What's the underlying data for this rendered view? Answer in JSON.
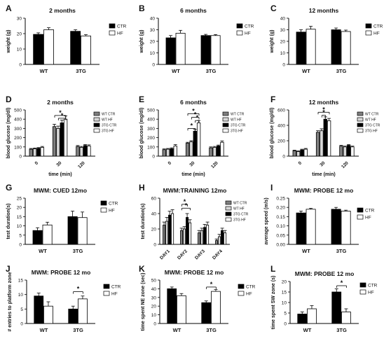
{
  "chart_data": [
    {
      "panel": "A",
      "title": "2 months",
      "type": "bar",
      "ylabel": "weight (g)",
      "ylim": [
        0,
        30
      ],
      "yticks": [
        0,
        10,
        20,
        30
      ],
      "categories": [
        "WT",
        "3TG"
      ],
      "series": [
        {
          "name": "CTR",
          "values": [
            19.5,
            21.5
          ],
          "errors": [
            1.0,
            1.0
          ],
          "fill": "#000000"
        },
        {
          "name": "HF",
          "values": [
            22.5,
            18.5
          ],
          "errors": [
            1.3,
            0.8
          ],
          "fill": "#ffffff"
        }
      ],
      "legend": "right"
    },
    {
      "panel": "B",
      "title": "6 months",
      "type": "bar",
      "ylabel": "weight (g)",
      "ylim": [
        0,
        40
      ],
      "yticks": [
        0,
        10,
        20,
        30,
        40
      ],
      "categories": [
        "WT",
        "3TG"
      ],
      "series": [
        {
          "name": "CTR",
          "values": [
            23,
            25
          ],
          "errors": [
            2.0,
            1.0
          ],
          "fill": "#000000"
        },
        {
          "name": "HF",
          "values": [
            27,
            25
          ],
          "errors": [
            2.5,
            0.8
          ],
          "fill": "#ffffff"
        }
      ],
      "legend": "right"
    },
    {
      "panel": "C",
      "title": "12 months",
      "type": "bar",
      "ylabel": "weight (g)",
      "ylim": [
        0,
        40
      ],
      "yticks": [
        0,
        10,
        20,
        30,
        40
      ],
      "categories": [
        "WT",
        "3TG"
      ],
      "series": [
        {
          "name": "CTR",
          "values": [
            28,
            30
          ],
          "errors": [
            2.0,
            1.5
          ],
          "fill": "#000000"
        },
        {
          "name": "HF",
          "values": [
            30.5,
            28.5
          ],
          "errors": [
            2.5,
            1.2
          ],
          "fill": "#ffffff"
        }
      ],
      "legend": "right"
    },
    {
      "panel": "D",
      "title": "2 months",
      "type": "bar",
      "ylabel": "blood glucose (mg/dl)",
      "xlabel": "time (min)",
      "ylim": [
        0,
        500
      ],
      "yticks": [
        0,
        100,
        200,
        300,
        400,
        500
      ],
      "categories": [
        "0",
        "30",
        "120"
      ],
      "series": [
        {
          "name": "WT CTR",
          "values": [
            75,
            320,
            105
          ],
          "errors": [
            8,
            25,
            10
          ],
          "fill": "#7f7f7f"
        },
        {
          "name": "WT HF",
          "values": [
            80,
            300,
            95
          ],
          "errors": [
            8,
            25,
            10
          ],
          "fill": "#d8d8d8"
        },
        {
          "name": "3TG CTR",
          "values": [
            85,
            360,
            115
          ],
          "errors": [
            8,
            30,
            10
          ],
          "fill": "#000000"
        },
        {
          "name": "3TG HF",
          "values": [
            95,
            400,
            110
          ],
          "errors": [
            10,
            35,
            12
          ],
          "fill": "#ffffff"
        }
      ],
      "annotations": [
        "*",
        "*"
      ],
      "legend": "right"
    },
    {
      "panel": "E",
      "title": "6 months",
      "type": "bar",
      "ylabel": "blood glucose (mg/dl)",
      "xlabel": "time (min)",
      "ylim": [
        0,
        500
      ],
      "yticks": [
        0,
        100,
        200,
        300,
        400,
        500
      ],
      "categories": [
        "0",
        "30",
        "120"
      ],
      "series": [
        {
          "name": "WT CTR",
          "values": [
            70,
            140,
            90
          ],
          "errors": [
            8,
            10,
            10
          ],
          "fill": "#7f7f7f"
        },
        {
          "name": "WT HF",
          "values": [
            75,
            155,
            95
          ],
          "errors": [
            8,
            12,
            10
          ],
          "fill": "#d8d8d8"
        },
        {
          "name": "3TG CTR",
          "values": [
            80,
            270,
            110
          ],
          "errors": [
            10,
            20,
            10
          ],
          "fill": "#000000"
        },
        {
          "name": "3TG HF",
          "values": [
            110,
            360,
            150
          ],
          "errors": [
            15,
            25,
            15
          ],
          "fill": "#ffffff"
        }
      ],
      "annotations": [
        "*",
        "*",
        "*",
        "*"
      ],
      "legend": "right"
    },
    {
      "panel": "F",
      "title": "12 months",
      "type": "bar",
      "ylabel": "blood glucose (mg/dl)",
      "xlabel": "time (min)",
      "ylim": [
        0,
        600
      ],
      "yticks": [
        0,
        200,
        400,
        600
      ],
      "categories": [
        "0",
        "30",
        "120"
      ],
      "series": [
        {
          "name": "WT CTR",
          "values": [
            70,
            310,
            130
          ],
          "errors": [
            8,
            20,
            10
          ],
          "fill": "#7f7f7f"
        },
        {
          "name": "WT HF",
          "values": [
            60,
            330,
            120
          ],
          "errors": [
            8,
            25,
            10
          ],
          "fill": "#d8d8d8"
        },
        {
          "name": "3TG CTR",
          "values": [
            80,
            480,
            140
          ],
          "errors": [
            10,
            30,
            10
          ],
          "fill": "#000000"
        },
        {
          "name": "3TG HF",
          "values": [
            90,
            460,
            120
          ],
          "errors": [
            10,
            30,
            10
          ],
          "fill": "#ffffff"
        }
      ],
      "annotations": [
        "*",
        "*"
      ],
      "legend": "right"
    },
    {
      "panel": "G",
      "title": "MWM: CUED 12mo",
      "type": "bar",
      "ylabel": "test duration(s)",
      "ylim": [
        0,
        25
      ],
      "yticks": [
        0,
        5,
        10,
        15,
        20,
        25
      ],
      "categories": [
        "WT",
        "3TG"
      ],
      "series": [
        {
          "name": "CTR",
          "values": [
            7.5,
            15
          ],
          "errors": [
            1.5,
            3.0
          ],
          "fill": "#000000"
        },
        {
          "name": "HF",
          "values": [
            10.5,
            14.5
          ],
          "errors": [
            1.5,
            3.0
          ],
          "fill": "#ffffff"
        }
      ],
      "legend": "right"
    },
    {
      "panel": "H",
      "title": "MWM:TRAINING 12mo",
      "type": "bar",
      "ylabel": "test duration(s)",
      "ylim": [
        0,
        60
      ],
      "yticks": [
        0,
        20,
        40,
        60
      ],
      "categories": [
        "DAY1",
        "DAY2",
        "DAY3",
        "DAY4"
      ],
      "series": [
        {
          "name": "WT CTR",
          "values": [
            25,
            18,
            15,
            5
          ],
          "errors": [
            4,
            3,
            3,
            2
          ],
          "fill": "#7f7f7f"
        },
        {
          "name": "WT HF",
          "values": [
            30,
            20,
            18,
            10
          ],
          "errors": [
            5,
            3,
            3,
            3
          ],
          "fill": "#d8d8d8"
        },
        {
          "name": "3TG CTR",
          "values": [
            38,
            35,
            22,
            18
          ],
          "errors": [
            5,
            5,
            4,
            3
          ],
          "fill": "#000000"
        },
        {
          "name": "3TG HF",
          "values": [
            40,
            28,
            25,
            15
          ],
          "errors": [
            5,
            4,
            4,
            3
          ],
          "fill": "#ffffff"
        }
      ],
      "annotations": [
        "*",
        "*"
      ],
      "legend": "right"
    },
    {
      "panel": "I",
      "title": "MWM: PROBE 12 mo",
      "type": "bar",
      "ylabel": "average speed (m/s)",
      "ylim": [
        0,
        0.25
      ],
      "yticks": [
        0.0,
        0.05,
        0.1,
        0.15,
        0.2,
        0.25
      ],
      "yticklabels": [
        "0.00",
        "0.05",
        "0.10",
        "0.15",
        "0.20",
        "0.25"
      ],
      "categories": [
        "WT",
        "3TG"
      ],
      "series": [
        {
          "name": "CTR",
          "values": [
            0.17,
            0.19
          ],
          "errors": [
            0.01,
            0.01
          ],
          "fill": "#000000"
        },
        {
          "name": "HF",
          "values": [
            0.19,
            0.18
          ],
          "errors": [
            0.005,
            0.005
          ],
          "fill": "#ffffff"
        }
      ],
      "legend": "right"
    },
    {
      "panel": "J",
      "title": "MWM: PROBE 12 mo",
      "type": "bar",
      "ylabel": "# entries to platform zone",
      "ylim": [
        0,
        15
      ],
      "yticks": [
        0,
        5,
        10,
        15
      ],
      "categories": [
        "WT",
        "3TG"
      ],
      "series": [
        {
          "name": "CTR",
          "values": [
            9.5,
            5
          ],
          "errors": [
            1.0,
            1.0
          ],
          "fill": "#000000"
        },
        {
          "name": "HF",
          "values": [
            6,
            8.5
          ],
          "errors": [
            1.5,
            1.0
          ],
          "fill": "#ffffff"
        }
      ],
      "annotations": [
        "*"
      ],
      "legend": "right"
    },
    {
      "panel": "K",
      "title": "MWM: PROBE 12 mo",
      "type": "bar",
      "ylabel": "time spent NE zone (sec)",
      "ylim": [
        0,
        50
      ],
      "yticks": [
        0,
        10,
        20,
        30,
        40,
        50
      ],
      "categories": [
        "WT",
        "3TG"
      ],
      "series": [
        {
          "name": "CTR",
          "values": [
            40,
            24
          ],
          "errors": [
            2.0,
            2.0
          ],
          "fill": "#000000"
        },
        {
          "name": "HF",
          "values": [
            32,
            37
          ],
          "errors": [
            2.5,
            2.0
          ],
          "fill": "#ffffff"
        }
      ],
      "annotations": [
        "*"
      ],
      "legend": "right"
    },
    {
      "panel": "L",
      "title": "MWM: PROBE 12 mo",
      "type": "bar",
      "ylabel": "time spent SW zone (s)",
      "ylim": [
        0,
        20
      ],
      "yticks": [
        0,
        5,
        10,
        15,
        20
      ],
      "categories": [
        "WT",
        "3TG"
      ],
      "series": [
        {
          "name": "CTR",
          "values": [
            4.5,
            15
          ],
          "errors": [
            1.0,
            1.5
          ],
          "fill": "#000000"
        },
        {
          "name": "HF",
          "values": [
            7,
            5.5
          ],
          "errors": [
            1.5,
            1.5
          ],
          "fill": "#ffffff"
        }
      ],
      "annotations": [
        "*"
      ],
      "legend": "right"
    }
  ]
}
